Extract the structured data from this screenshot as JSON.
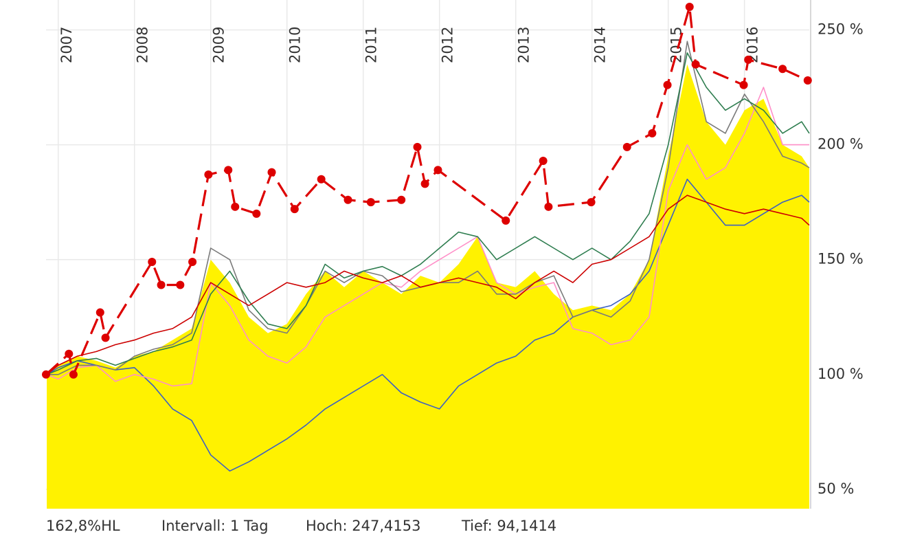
{
  "chart_data": {
    "type": "line",
    "footer": [
      "162,8%HL",
      "Intervall: 1 Tag",
      "Hoch: 247,4153",
      "Tief: 94,1414"
    ],
    "x": [
      2006.85,
      2007.0,
      2007.25,
      2007.5,
      2007.75,
      2008.0,
      2008.25,
      2008.5,
      2008.75,
      2009.0,
      2009.25,
      2009.5,
      2009.75,
      2010.0,
      2010.25,
      2010.5,
      2010.75,
      2011.0,
      2011.25,
      2011.5,
      2011.75,
      2012.0,
      2012.25,
      2012.5,
      2012.75,
      2013.0,
      2013.25,
      2013.5,
      2013.75,
      2014.0,
      2014.25,
      2014.5,
      2014.75,
      2015.0,
      2015.25,
      2015.5,
      2015.75,
      2016.0,
      2016.25,
      2016.5,
      2016.75,
      2016.85
    ],
    "series": [
      {
        "color": "#fff200",
        "area": true,
        "values": [
          100,
          104,
          108,
          106,
          103,
          108,
          110,
          115,
          120,
          150,
          140,
          125,
          118,
          122,
          135,
          145,
          138,
          145,
          140,
          135,
          143,
          140,
          148,
          160,
          140,
          138,
          145,
          135,
          128,
          130,
          128,
          135,
          150,
          195,
          235,
          210,
          200,
          215,
          220,
          200,
          195,
          190
        ]
      },
      {
        "color": "#3b5fc4",
        "values": [
          100,
          103,
          106,
          104,
          102,
          103,
          95,
          85,
          80,
          65,
          58,
          62,
          67,
          72,
          78,
          85,
          90,
          95,
          100,
          92,
          88,
          85,
          95,
          100,
          105,
          108,
          115,
          118,
          125,
          128,
          130,
          135,
          145,
          165,
          185,
          175,
          165,
          165,
          170,
          175,
          178,
          175
        ]
      },
      {
        "color": "#ff8fc8",
        "values": [
          100,
          98,
          103,
          104,
          97,
          100,
          98,
          95,
          96,
          140,
          130,
          115,
          108,
          105,
          112,
          125,
          130,
          135,
          140,
          138,
          145,
          150,
          155,
          160,
          140,
          135,
          138,
          140,
          120,
          118,
          113,
          115,
          125,
          180,
          200,
          185,
          190,
          205,
          225,
          200,
          200,
          200
        ]
      },
      {
        "color": "#7a7a7a",
        "values": [
          100,
          100,
          104,
          104,
          102,
          108,
          111,
          113,
          118,
          155,
          150,
          128,
          120,
          118,
          130,
          145,
          140,
          145,
          143,
          136,
          138,
          140,
          140,
          145,
          135,
          135,
          140,
          143,
          125,
          128,
          125,
          132,
          150,
          190,
          245,
          210,
          205,
          222,
          210,
          195,
          192,
          190
        ]
      },
      {
        "color": "#2e7d4f",
        "values": [
          100,
          102,
          106,
          107,
          104,
          107,
          110,
          112,
          115,
          135,
          145,
          132,
          122,
          120,
          130,
          148,
          142,
          145,
          147,
          143,
          148,
          155,
          162,
          160,
          150,
          155,
          160,
          155,
          150,
          155,
          150,
          158,
          170,
          200,
          240,
          225,
          215,
          220,
          215,
          205,
          210,
          205
        ]
      },
      {
        "color": "#cc0000",
        "values": [
          100,
          104,
          108,
          110,
          113,
          115,
          118,
          120,
          125,
          140,
          135,
          130,
          135,
          140,
          138,
          140,
          145,
          142,
          140,
          143,
          138,
          140,
          142,
          140,
          138,
          133,
          140,
          145,
          140,
          148,
          150,
          155,
          160,
          172,
          178,
          175,
          172,
          170,
          172,
          170,
          168,
          165
        ]
      },
      {
        "color": "#dd0000",
        "dashed": true,
        "markers": true,
        "x": [
          2006.84,
          2007.14,
          2007.2,
          2007.55,
          2007.62,
          2008.23,
          2008.35,
          2008.6,
          2008.76,
          2008.97,
          2009.23,
          2009.32,
          2009.6,
          2009.8,
          2010.1,
          2010.45,
          2010.8,
          2011.1,
          2011.5,
          2011.71,
          2011.81,
          2011.98,
          2012.87,
          2013.36,
          2013.43,
          2013.99,
          2014.46,
          2014.79,
          2014.99,
          2015.28,
          2015.36,
          2015.99,
          2016.05,
          2016.5,
          2016.83
        ],
        "values": [
          100,
          109,
          100,
          127,
          116,
          149,
          139,
          139,
          149,
          187,
          189,
          173,
          170,
          188,
          172,
          185,
          176,
          175,
          176,
          199,
          183,
          189,
          167,
          193,
          173,
          175,
          199,
          205,
          226,
          260,
          235,
          226,
          237,
          233,
          228
        ]
      }
    ],
    "xlim": [
      2006.84,
      2016.85
    ],
    "xticks": [
      2007,
      2008,
      2009,
      2010,
      2011,
      2012,
      2013,
      2014,
      2015,
      2016
    ],
    "ylim": [
      41.6,
      263
    ],
    "yticks": [
      {
        "value": 50,
        "label": "50 %"
      },
      {
        "value": 100,
        "label": "100 %"
      },
      {
        "value": 150,
        "label": "150 %"
      },
      {
        "value": 200,
        "label": "200 %"
      },
      {
        "value": 250,
        "label": "250 %"
      }
    ],
    "grid": true
  }
}
